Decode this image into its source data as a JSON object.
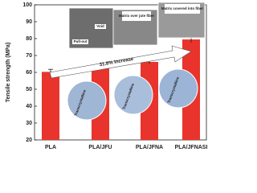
{
  "chart_data": {
    "type": "bar",
    "ylabel": "Tensile strength (MPa)",
    "categories": [
      "PLA",
      "PLA/JFU",
      "PLA/JFNA",
      "PLA/JFNASI"
    ],
    "values": [
      60.3,
      63,
      66.2,
      79.5
    ],
    "errors": [
      1.5,
      1.2,
      1.3,
      1.8
    ],
    "color": "#e8342c",
    "ylim": [
      20,
      100
    ],
    "yticks": [
      20,
      30,
      40,
      50,
      60,
      70,
      80,
      90,
      100
    ],
    "annotations": [
      "31.8% Increase",
      "Pull-out",
      "Void",
      "Matrix over jute fiber",
      "Matrix covered into fiber",
      "Transcrystalline",
      "Transcrystalline",
      "Transcrystalline"
    ]
  }
}
